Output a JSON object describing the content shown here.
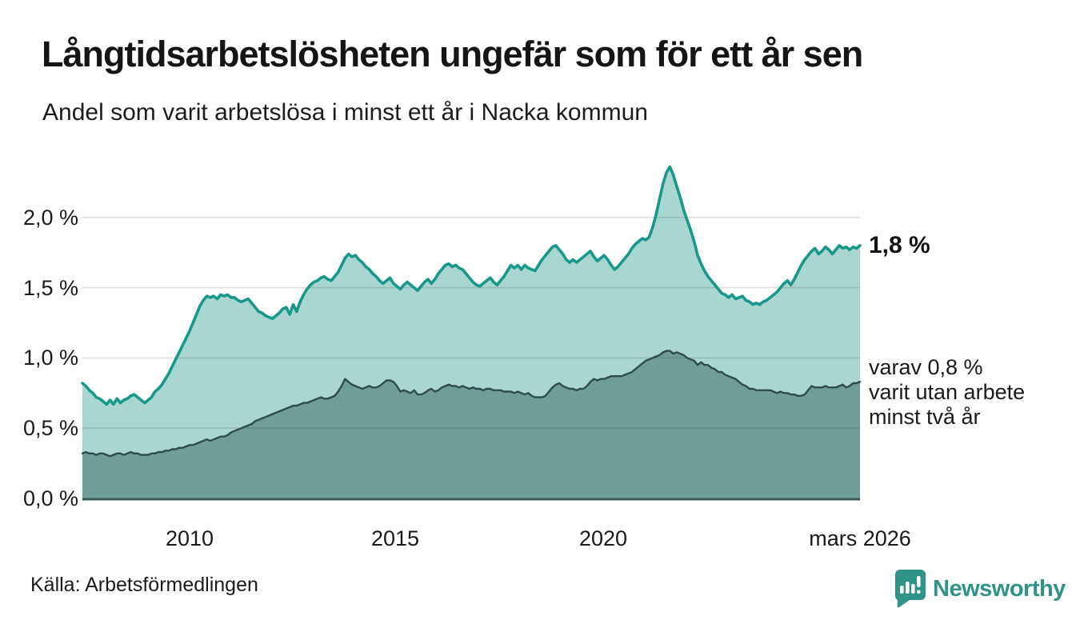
{
  "header": {
    "title": "Långtidsarbetslösheten ungefär som för ett år sen",
    "subtitle": "Andel som varit arbetslösa i minst ett år i Nacka kommun"
  },
  "chart": {
    "y_ticks": [
      "2,0 %",
      "1,5 %",
      "1,0 %",
      "0,5 %",
      "0,0 %"
    ],
    "x_ticks": [
      "2010",
      "2015",
      "2020",
      "mars 2026"
    ],
    "annotations": {
      "latest_value": "1,8 %",
      "secondary_line1": "varav 0,8 %",
      "secondary_line2": "varit utan arbete",
      "secondary_line3": "minst två år"
    }
  },
  "colors": {
    "line_1yr": "#17988b",
    "fill_1yr": "#a9d6d0",
    "line_2yr": "#2e4c48",
    "fill_2yr": "#6f9e99",
    "axis_line": "#3c5b56",
    "gridline": "rgba(30,30,30,0.14)",
    "brand_teal": "#2f9387"
  },
  "footer": {
    "source": "Källa: Arbetsförmedlingen",
    "brand": "Newsworthy"
  },
  "chart_data": {
    "type": "area",
    "title": "Långtidsarbetslösheten ungefär som för ett år sen",
    "subtitle": "Andel som varit arbetslösa i minst ett år i Nacka kommun",
    "unit": "percent",
    "x_unit": "decimal_year_monthly",
    "x_start": 2007.42,
    "x_end": 2026.17,
    "ylim": [
      0,
      2.4
    ],
    "y_gridlines": [
      0.0,
      0.5,
      1.0,
      1.5,
      2.0
    ],
    "x_tick_positions": [
      2010,
      2015,
      2020,
      2026.17
    ],
    "legend_position": "end-of-line-labels",
    "grid": true,
    "series": [
      {
        "name": "Andel arbetslösa minst ett år",
        "end_label": "1,8 %",
        "end_value": 1.8,
        "values": [
          0.82,
          0.8,
          0.77,
          0.75,
          0.72,
          0.71,
          0.69,
          0.67,
          0.7,
          0.67,
          0.71,
          0.68,
          0.7,
          0.71,
          0.73,
          0.74,
          0.72,
          0.7,
          0.68,
          0.7,
          0.72,
          0.76,
          0.78,
          0.81,
          0.85,
          0.89,
          0.94,
          0.99,
          1.04,
          1.09,
          1.14,
          1.19,
          1.25,
          1.31,
          1.37,
          1.41,
          1.44,
          1.43,
          1.44,
          1.42,
          1.45,
          1.44,
          1.45,
          1.43,
          1.43,
          1.41,
          1.4,
          1.41,
          1.42,
          1.39,
          1.36,
          1.33,
          1.32,
          1.3,
          1.29,
          1.28,
          1.3,
          1.32,
          1.35,
          1.36,
          1.31,
          1.38,
          1.33,
          1.4,
          1.45,
          1.49,
          1.52,
          1.54,
          1.55,
          1.57,
          1.58,
          1.56,
          1.55,
          1.58,
          1.61,
          1.66,
          1.71,
          1.74,
          1.72,
          1.73,
          1.7,
          1.68,
          1.65,
          1.63,
          1.6,
          1.58,
          1.55,
          1.53,
          1.55,
          1.57,
          1.53,
          1.51,
          1.49,
          1.52,
          1.54,
          1.52,
          1.5,
          1.48,
          1.51,
          1.54,
          1.56,
          1.53,
          1.56,
          1.6,
          1.63,
          1.66,
          1.67,
          1.65,
          1.66,
          1.64,
          1.63,
          1.6,
          1.57,
          1.54,
          1.52,
          1.51,
          1.53,
          1.55,
          1.57,
          1.54,
          1.52,
          1.55,
          1.58,
          1.62,
          1.66,
          1.64,
          1.66,
          1.63,
          1.66,
          1.64,
          1.63,
          1.62,
          1.66,
          1.7,
          1.73,
          1.76,
          1.79,
          1.8,
          1.77,
          1.74,
          1.7,
          1.68,
          1.7,
          1.68,
          1.7,
          1.72,
          1.74,
          1.76,
          1.72,
          1.69,
          1.71,
          1.73,
          1.7,
          1.66,
          1.63,
          1.65,
          1.68,
          1.71,
          1.74,
          1.78,
          1.81,
          1.83,
          1.85,
          1.84,
          1.86,
          1.93,
          2.02,
          2.13,
          2.24,
          2.32,
          2.36,
          2.3,
          2.22,
          2.14,
          2.05,
          1.98,
          1.91,
          1.83,
          1.73,
          1.67,
          1.62,
          1.58,
          1.55,
          1.52,
          1.49,
          1.46,
          1.45,
          1.43,
          1.45,
          1.42,
          1.43,
          1.44,
          1.41,
          1.4,
          1.38,
          1.39,
          1.38,
          1.4,
          1.41,
          1.43,
          1.45,
          1.47,
          1.5,
          1.53,
          1.55,
          1.52,
          1.56,
          1.61,
          1.66,
          1.7,
          1.73,
          1.76,
          1.78,
          1.74,
          1.76,
          1.79,
          1.77,
          1.74,
          1.77,
          1.8,
          1.78,
          1.79,
          1.77,
          1.79,
          1.78,
          1.8
        ]
      },
      {
        "name": "varav arbetslösa minst två år",
        "end_label": "varav 0,8 % varit utan arbete minst två år",
        "end_value": 0.8,
        "values": [
          0.32,
          0.33,
          0.32,
          0.32,
          0.31,
          0.32,
          0.32,
          0.31,
          0.3,
          0.31,
          0.32,
          0.32,
          0.31,
          0.32,
          0.33,
          0.32,
          0.32,
          0.31,
          0.31,
          0.31,
          0.32,
          0.32,
          0.33,
          0.33,
          0.34,
          0.34,
          0.35,
          0.35,
          0.36,
          0.36,
          0.37,
          0.38,
          0.38,
          0.39,
          0.4,
          0.41,
          0.42,
          0.41,
          0.42,
          0.43,
          0.44,
          0.44,
          0.45,
          0.47,
          0.48,
          0.49,
          0.5,
          0.51,
          0.52,
          0.53,
          0.55,
          0.56,
          0.57,
          0.58,
          0.59,
          0.6,
          0.61,
          0.62,
          0.63,
          0.64,
          0.65,
          0.66,
          0.66,
          0.67,
          0.68,
          0.68,
          0.69,
          0.7,
          0.71,
          0.72,
          0.71,
          0.71,
          0.72,
          0.73,
          0.76,
          0.8,
          0.85,
          0.83,
          0.81,
          0.8,
          0.79,
          0.78,
          0.79,
          0.8,
          0.79,
          0.79,
          0.8,
          0.82,
          0.84,
          0.84,
          0.83,
          0.8,
          0.76,
          0.77,
          0.76,
          0.75,
          0.77,
          0.74,
          0.74,
          0.75,
          0.77,
          0.78,
          0.76,
          0.77,
          0.79,
          0.8,
          0.81,
          0.8,
          0.8,
          0.79,
          0.8,
          0.79,
          0.78,
          0.79,
          0.78,
          0.78,
          0.77,
          0.78,
          0.78,
          0.77,
          0.77,
          0.77,
          0.76,
          0.76,
          0.76,
          0.75,
          0.76,
          0.75,
          0.74,
          0.75,
          0.73,
          0.72,
          0.72,
          0.72,
          0.73,
          0.76,
          0.79,
          0.81,
          0.82,
          0.8,
          0.79,
          0.78,
          0.78,
          0.77,
          0.78,
          0.78,
          0.8,
          0.83,
          0.85,
          0.84,
          0.85,
          0.85,
          0.86,
          0.87,
          0.87,
          0.87,
          0.87,
          0.88,
          0.89,
          0.9,
          0.92,
          0.94,
          0.96,
          0.98,
          0.99,
          1.0,
          1.01,
          1.02,
          1.04,
          1.05,
          1.05,
          1.03,
          1.04,
          1.03,
          1.02,
          1.0,
          0.99,
          0.98,
          0.95,
          0.97,
          0.95,
          0.95,
          0.93,
          0.92,
          0.9,
          0.9,
          0.88,
          0.87,
          0.86,
          0.85,
          0.83,
          0.81,
          0.8,
          0.78,
          0.78,
          0.77,
          0.77,
          0.77,
          0.77,
          0.77,
          0.76,
          0.75,
          0.76,
          0.75,
          0.75,
          0.74,
          0.74,
          0.73,
          0.73,
          0.74,
          0.77,
          0.8,
          0.79,
          0.79,
          0.79,
          0.8,
          0.79,
          0.79,
          0.79,
          0.8,
          0.81,
          0.79,
          0.8,
          0.82,
          0.82,
          0.83
        ]
      }
    ]
  }
}
